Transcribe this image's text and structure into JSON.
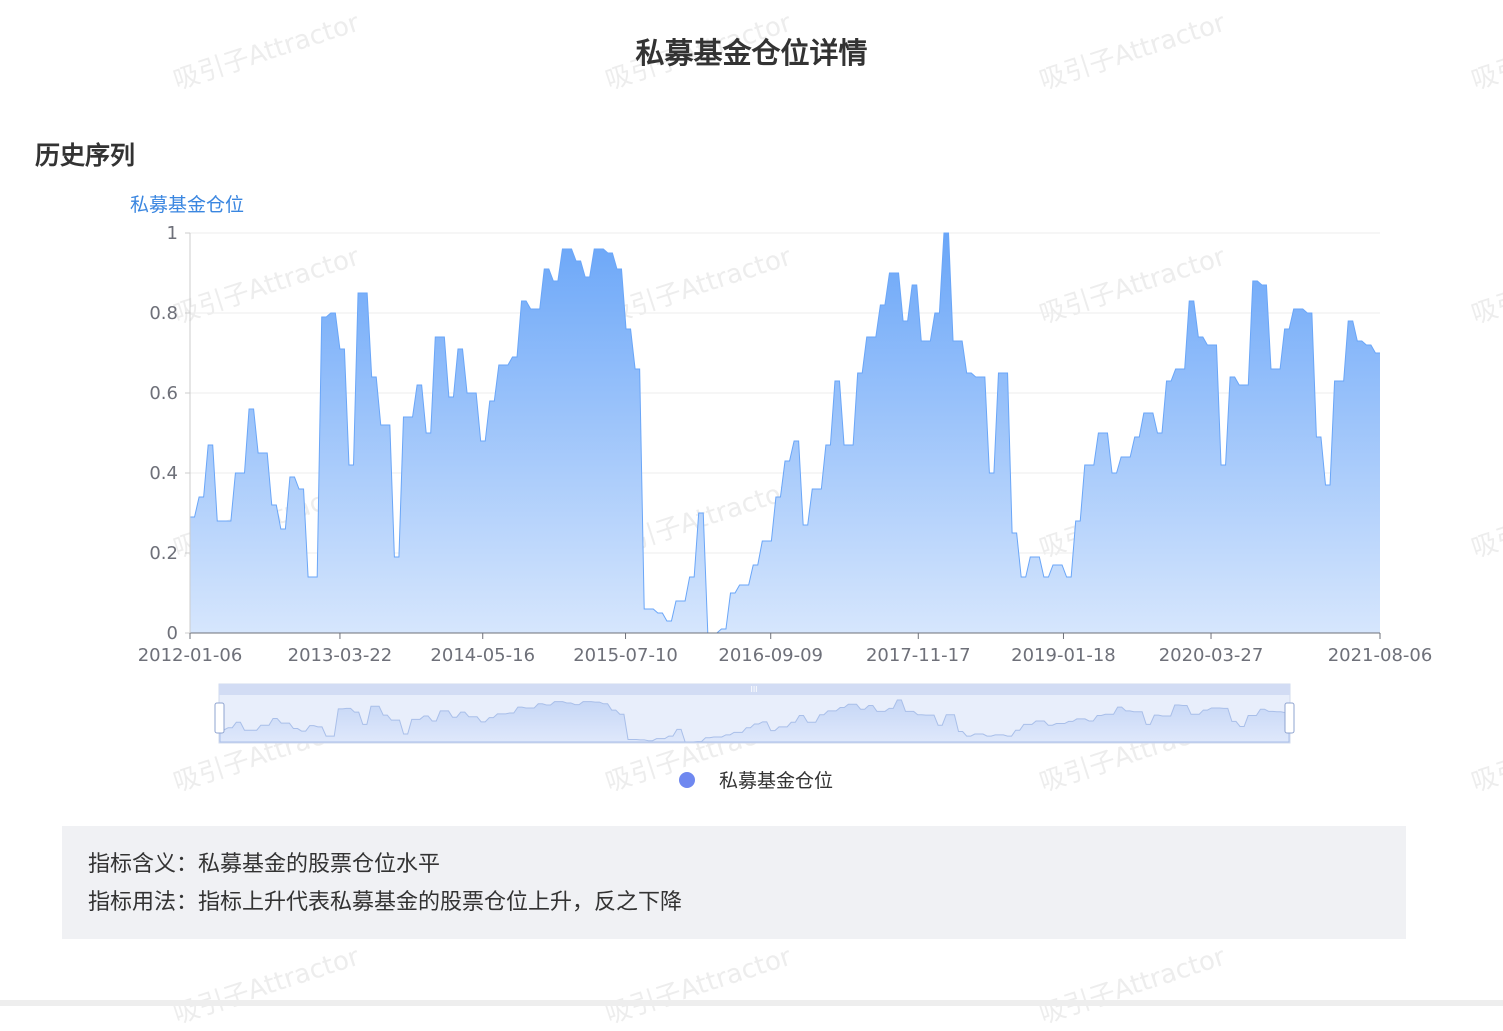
{
  "page": {
    "title": "私募基金仓位详情"
  },
  "section": {
    "title": "历史序列"
  },
  "watermark": {
    "text": "吸引子Attractor"
  },
  "colors": {
    "line_top": "#6aa6f8",
    "line_bottom": "#d6e6fd",
    "legend_dot": "#6f88f0",
    "grid": "#eeeeee",
    "y_name": "#3a86e0"
  },
  "chart_data": {
    "type": "area",
    "y_name": "私募基金仓位",
    "ylim": [
      0,
      1
    ],
    "y_ticks": [
      "0",
      "0.2",
      "0.4",
      "0.6",
      "0.8",
      "1"
    ],
    "x_tick_labels": [
      "2012-01-06",
      "2013-03-22",
      "2014-05-16",
      "2015-07-10",
      "2016-09-09",
      "2017-11-17",
      "2019-01-18",
      "2020-03-27",
      "2021-08-06"
    ],
    "legend": "私募基金仓位",
    "grid": true,
    "values": [
      0.29,
      0.29,
      0.34,
      0.34,
      0.47,
      0.47,
      0.28,
      0.28,
      0.28,
      0.28,
      0.4,
      0.4,
      0.4,
      0.56,
      0.56,
      0.45,
      0.45,
      0.45,
      0.32,
      0.32,
      0.26,
      0.26,
      0.39,
      0.39,
      0.36,
      0.36,
      0.14,
      0.14,
      0.14,
      0.79,
      0.79,
      0.8,
      0.8,
      0.71,
      0.71,
      0.42,
      0.42,
      0.85,
      0.85,
      0.85,
      0.64,
      0.64,
      0.52,
      0.52,
      0.52,
      0.19,
      0.19,
      0.54,
      0.54,
      0.54,
      0.62,
      0.62,
      0.5,
      0.5,
      0.74,
      0.74,
      0.74,
      0.59,
      0.59,
      0.71,
      0.71,
      0.6,
      0.6,
      0.6,
      0.48,
      0.48,
      0.58,
      0.58,
      0.67,
      0.67,
      0.67,
      0.69,
      0.69,
      0.83,
      0.83,
      0.81,
      0.81,
      0.81,
      0.91,
      0.91,
      0.88,
      0.88,
      0.96,
      0.96,
      0.96,
      0.93,
      0.93,
      0.89,
      0.89,
      0.96,
      0.96,
      0.96,
      0.95,
      0.95,
      0.91,
      0.91,
      0.76,
      0.76,
      0.66,
      0.66,
      0.06,
      0.06,
      0.06,
      0.05,
      0.05,
      0.03,
      0.03,
      0.08,
      0.08,
      0.08,
      0.14,
      0.14,
      0.3,
      0.3,
      0.0,
      0.0,
      0.0,
      0.01,
      0.01,
      0.1,
      0.1,
      0.12,
      0.12,
      0.12,
      0.17,
      0.17,
      0.23,
      0.23,
      0.23,
      0.34,
      0.34,
      0.43,
      0.43,
      0.48,
      0.48,
      0.27,
      0.27,
      0.36,
      0.36,
      0.36,
      0.47,
      0.47,
      0.63,
      0.63,
      0.47,
      0.47,
      0.47,
      0.65,
      0.65,
      0.74,
      0.74,
      0.74,
      0.82,
      0.82,
      0.9,
      0.9,
      0.9,
      0.78,
      0.78,
      0.87,
      0.87,
      0.73,
      0.73,
      0.73,
      0.8,
      0.8,
      1.0,
      1.0,
      0.73,
      0.73,
      0.73,
      0.65,
      0.65,
      0.64,
      0.64,
      0.64,
      0.4,
      0.4,
      0.65,
      0.65,
      0.65,
      0.25,
      0.25,
      0.14,
      0.14,
      0.19,
      0.19,
      0.19,
      0.14,
      0.14,
      0.17,
      0.17,
      0.17,
      0.14,
      0.14,
      0.28,
      0.28,
      0.42,
      0.42,
      0.42,
      0.5,
      0.5,
      0.5,
      0.4,
      0.4,
      0.44,
      0.44,
      0.44,
      0.49,
      0.49,
      0.55,
      0.55,
      0.55,
      0.5,
      0.5,
      0.63,
      0.63,
      0.66,
      0.66,
      0.66,
      0.83,
      0.83,
      0.74,
      0.74,
      0.72,
      0.72,
      0.72,
      0.42,
      0.42,
      0.64,
      0.64,
      0.62,
      0.62,
      0.62,
      0.88,
      0.88,
      0.87,
      0.87,
      0.66,
      0.66,
      0.66,
      0.76,
      0.76,
      0.81,
      0.81,
      0.81,
      0.8,
      0.8,
      0.49,
      0.49,
      0.37,
      0.37,
      0.63,
      0.63,
      0.63,
      0.78,
      0.78,
      0.73,
      0.73,
      0.72,
      0.72,
      0.7,
      0.7
    ]
  },
  "info": {
    "meaning_label": "指标含义：",
    "meaning_text": "私募基金的股票仓位水平",
    "usage_label": "指标用法：",
    "usage_text": "指标上升代表私募基金的股票仓位上升，反之下降"
  }
}
